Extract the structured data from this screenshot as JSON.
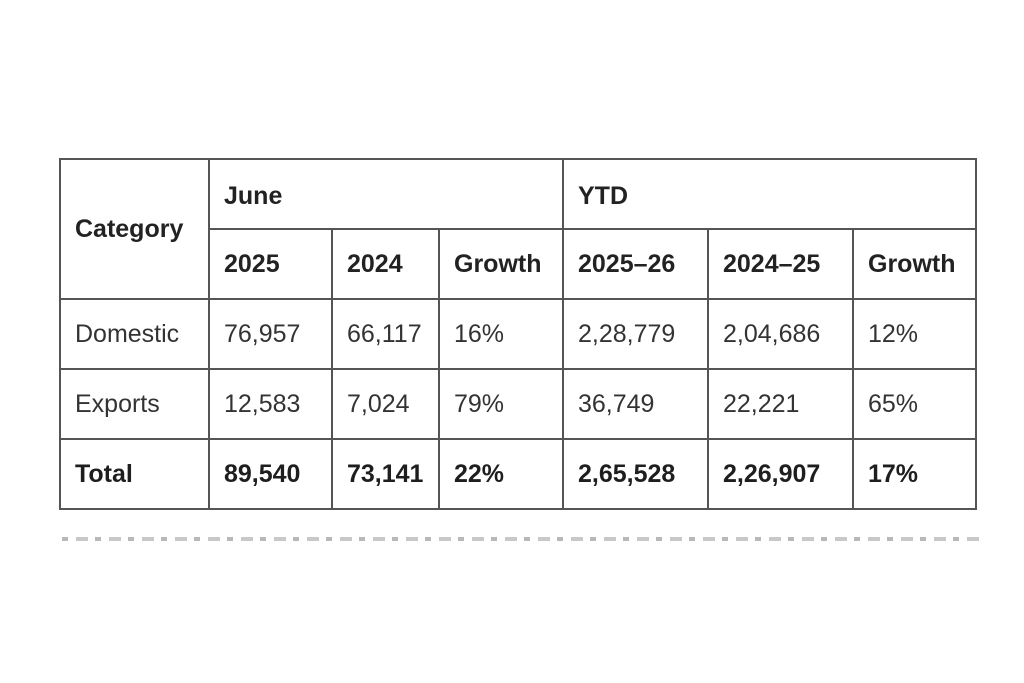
{
  "table": {
    "header": {
      "category": "Category",
      "june": "June",
      "ytd": "YTD",
      "june_2025": "2025",
      "june_2024": "2024",
      "june_growth": "Growth",
      "ytd_2025_26": "2025–26",
      "ytd_2024_25": "2024–25",
      "ytd_growth": "Growth"
    },
    "rows": [
      {
        "category": "Domestic",
        "june_2025": "76,957",
        "june_2024": "66,117",
        "june_growth": "16%",
        "ytd_2025_26": "2,28,779",
        "ytd_2024_25": "2,04,686",
        "ytd_growth": "12%"
      },
      {
        "category": "Exports",
        "june_2025": "12,583",
        "june_2024": "7,024",
        "june_growth": "79%",
        "ytd_2025_26": "36,749",
        "ytd_2024_25": "22,221",
        "ytd_growth": "65%"
      },
      {
        "category": "Total",
        "june_2025": "89,540",
        "june_2024": "73,141",
        "june_growth": "22%",
        "ytd_2025_26": "2,65,528",
        "ytd_2024_25": "2,26,907",
        "ytd_growth": "17%"
      }
    ]
  }
}
